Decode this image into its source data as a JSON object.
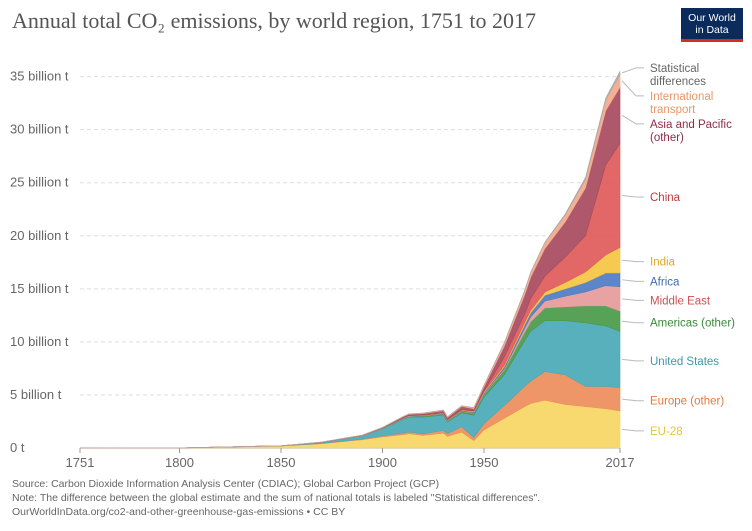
{
  "title": "Annual total CO₂ emissions, by world region, 1751 to 2017",
  "logo": {
    "line1": "Our World",
    "line2": "in Data"
  },
  "footer": {
    "source": "Source: Carbon Dioxide Information Analysis Center (CDIAC); Global Carbon Project (GCP)",
    "note": "Note: The difference between the global estimate and the sum of national totals is labeled \"Statistical differences\".",
    "url": "OurWorldInData.org/co2-and-other-greenhouse-gas-emissions • CC BY"
  },
  "chart_data": {
    "type": "area",
    "stacked": true,
    "title": "Annual total CO₂ emissions, by world region, 1751 to 2017",
    "ylabel": "",
    "xlabel": "",
    "y_ticks": [
      0,
      5,
      10,
      15,
      20,
      25,
      30,
      35
    ],
    "y_tick_labels": [
      "0 t",
      "5 billion t",
      "10 billion t",
      "15 billion t",
      "20 billion t",
      "25 billion t",
      "30 billion t",
      "35 billion t"
    ],
    "x_ticks": [
      1751,
      1800,
      1850,
      1900,
      1950,
      2017
    ],
    "ylim": [
      0,
      36
    ],
    "xlim": [
      1751,
      2017
    ],
    "grid": true,
    "legend_position": "right (labels at series ends)",
    "x": [
      1751,
      1800,
      1850,
      1870,
      1890,
      1900,
      1910,
      1913,
      1920,
      1930,
      1932,
      1939,
      1945,
      1950,
      1960,
      1970,
      1973,
      1980,
      1990,
      2000,
      2010,
      2017
    ],
    "series": [
      {
        "name": "EU-28",
        "color": "#f7d663",
        "values": [
          0,
          0.01,
          0.18,
          0.4,
          0.78,
          1.05,
          1.25,
          1.35,
          1.2,
          1.4,
          1.1,
          1.5,
          0.7,
          1.7,
          2.8,
          3.9,
          4.2,
          4.5,
          4.1,
          3.9,
          3.7,
          3.5
        ]
      },
      {
        "name": "Europe (other)",
        "color": "#ee8d5b",
        "values": [
          0,
          0,
          0.01,
          0.03,
          0.06,
          0.1,
          0.15,
          0.16,
          0.12,
          0.25,
          0.25,
          0.5,
          0.3,
          0.6,
          1.2,
          1.9,
          2.1,
          2.7,
          2.8,
          1.9,
          2.1,
          2.2
        ]
      },
      {
        "name": "United States",
        "color": "#4aa9b6",
        "values": [
          0,
          0,
          0.02,
          0.1,
          0.3,
          0.66,
          1.3,
          1.4,
          1.6,
          1.45,
          1.1,
          1.3,
          2.1,
          2.5,
          2.9,
          4.3,
          4.7,
          4.8,
          5.1,
          6.0,
          5.7,
          5.3
        ]
      },
      {
        "name": "Americas (other)",
        "color": "#4a9a4a",
        "values": [
          0,
          0,
          0,
          0,
          0.01,
          0.02,
          0.05,
          0.06,
          0.08,
          0.1,
          0.1,
          0.14,
          0.2,
          0.25,
          0.45,
          0.8,
          0.9,
          1.2,
          1.3,
          1.6,
          1.9,
          1.9
        ]
      },
      {
        "name": "Middle East",
        "color": "#e79a9a",
        "values": [
          0,
          0,
          0,
          0,
          0,
          0,
          0,
          0.01,
          0.01,
          0.02,
          0.02,
          0.03,
          0.04,
          0.05,
          0.12,
          0.35,
          0.45,
          0.65,
          1.0,
          1.3,
          1.9,
          2.3
        ]
      },
      {
        "name": "Africa",
        "color": "#4f7cc4",
        "values": [
          0,
          0,
          0,
          0,
          0.01,
          0.02,
          0.03,
          0.04,
          0.04,
          0.05,
          0.05,
          0.07,
          0.08,
          0.1,
          0.2,
          0.35,
          0.4,
          0.55,
          0.7,
          0.9,
          1.2,
          1.3
        ]
      },
      {
        "name": "India",
        "color": "#f5c442",
        "values": [
          0,
          0,
          0,
          0.01,
          0.02,
          0.02,
          0.03,
          0.03,
          0.03,
          0.03,
          0.03,
          0.04,
          0.05,
          0.08,
          0.12,
          0.2,
          0.23,
          0.3,
          0.6,
          1.0,
          1.7,
          2.4
        ]
      },
      {
        "name": "China",
        "color": "#e05a5a",
        "values": [
          0,
          0,
          0,
          0,
          0,
          0,
          0.01,
          0.01,
          0.02,
          0.02,
          0.02,
          0.03,
          0.03,
          0.08,
          0.8,
          0.8,
          1.1,
          1.5,
          2.4,
          3.4,
          8.5,
          9.8
        ]
      },
      {
        "name": "Asia and Pacific (other)",
        "color": "#a84a5e",
        "values": [
          0,
          0,
          0,
          0.02,
          0.03,
          0.05,
          0.1,
          0.12,
          0.15,
          0.2,
          0.2,
          0.3,
          0.2,
          0.4,
          1.0,
          1.8,
          2.0,
          2.6,
          3.3,
          4.5,
          5.1,
          5.3
        ]
      },
      {
        "name": "International transport",
        "color": "#f3a98a",
        "values": [
          0,
          0,
          0,
          0,
          0,
          0.02,
          0.03,
          0.03,
          0.04,
          0.06,
          0.06,
          0.08,
          0.1,
          0.15,
          0.3,
          0.4,
          0.45,
          0.55,
          0.65,
          0.8,
          1.0,
          1.2
        ]
      },
      {
        "name": "Statistical differences",
        "color": "#aaaaaa",
        "values": [
          0,
          0,
          0,
          0,
          0,
          0,
          0,
          0,
          0,
          0,
          0,
          0,
          0,
          0,
          0.05,
          0.05,
          0.05,
          0.05,
          0.1,
          0.2,
          0.2,
          0.3
        ]
      }
    ],
    "label_colors": {
      "Statistical differences": "#666666",
      "International transport": "#e8966b",
      "Asia and Pacific (other)": "#8b2d45",
      "China": "#c23b3b",
      "India": "#e9a526",
      "Africa": "#3d6cb3",
      "Middle East": "#cf5050",
      "Americas (other)": "#3a8a3a",
      "United States": "#3a9aa8",
      "Europe (other)": "#e07b3c",
      "EU-28": "#e8c245"
    },
    "label_lines": {
      "Statistical differences": [
        "Statistical",
        "differences"
      ],
      "International transport": [
        "International",
        "transport"
      ],
      "Asia and Pacific (other)": [
        "Asia and Pacific",
        "(other)"
      ]
    }
  }
}
